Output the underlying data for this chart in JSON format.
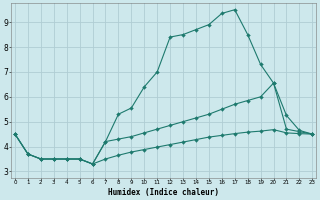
{
  "xlabel": "Humidex (Indice chaleur)",
  "bg_color": "#cde8ec",
  "grid_color": "#b0cdd4",
  "line_color": "#1e7a6e",
  "xlim": [
    -0.3,
    23.3
  ],
  "ylim": [
    2.75,
    9.75
  ],
  "xticks": [
    0,
    1,
    2,
    3,
    4,
    5,
    6,
    7,
    8,
    9,
    10,
    11,
    12,
    13,
    14,
    15,
    16,
    17,
    18,
    19,
    20,
    21,
    22,
    23
  ],
  "yticks": [
    3,
    4,
    5,
    6,
    7,
    8,
    9
  ],
  "line1_x": [
    0,
    1,
    2,
    3,
    4,
    5,
    6,
    7,
    8,
    9,
    10,
    11,
    12,
    13,
    14,
    15,
    16,
    17,
    18,
    19,
    20,
    21,
    22,
    23
  ],
  "line1_y": [
    4.5,
    3.7,
    3.5,
    3.5,
    3.5,
    3.5,
    3.3,
    4.2,
    5.3,
    5.55,
    6.4,
    7.0,
    8.4,
    8.5,
    8.7,
    8.9,
    9.35,
    9.5,
    8.5,
    7.3,
    6.55,
    4.7,
    4.6,
    4.5
  ],
  "line2_x": [
    0,
    1,
    2,
    3,
    4,
    5,
    6,
    7,
    8,
    9,
    10,
    11,
    12,
    13,
    14,
    15,
    16,
    17,
    18,
    19,
    20,
    21,
    22,
    23
  ],
  "line2_y": [
    4.5,
    3.7,
    3.5,
    3.5,
    3.5,
    3.5,
    3.3,
    4.2,
    4.3,
    4.4,
    4.55,
    4.7,
    4.85,
    5.0,
    5.15,
    5.3,
    5.5,
    5.7,
    5.85,
    6.0,
    6.55,
    5.25,
    4.65,
    4.5
  ],
  "line3_x": [
    0,
    1,
    2,
    3,
    4,
    5,
    6,
    7,
    8,
    9,
    10,
    11,
    12,
    13,
    14,
    15,
    16,
    17,
    18,
    19,
    20,
    21,
    22,
    23
  ],
  "line3_y": [
    4.5,
    3.7,
    3.5,
    3.5,
    3.5,
    3.5,
    3.3,
    3.5,
    3.65,
    3.78,
    3.88,
    3.98,
    4.08,
    4.18,
    4.28,
    4.38,
    4.45,
    4.52,
    4.58,
    4.62,
    4.68,
    4.55,
    4.52,
    4.5
  ]
}
